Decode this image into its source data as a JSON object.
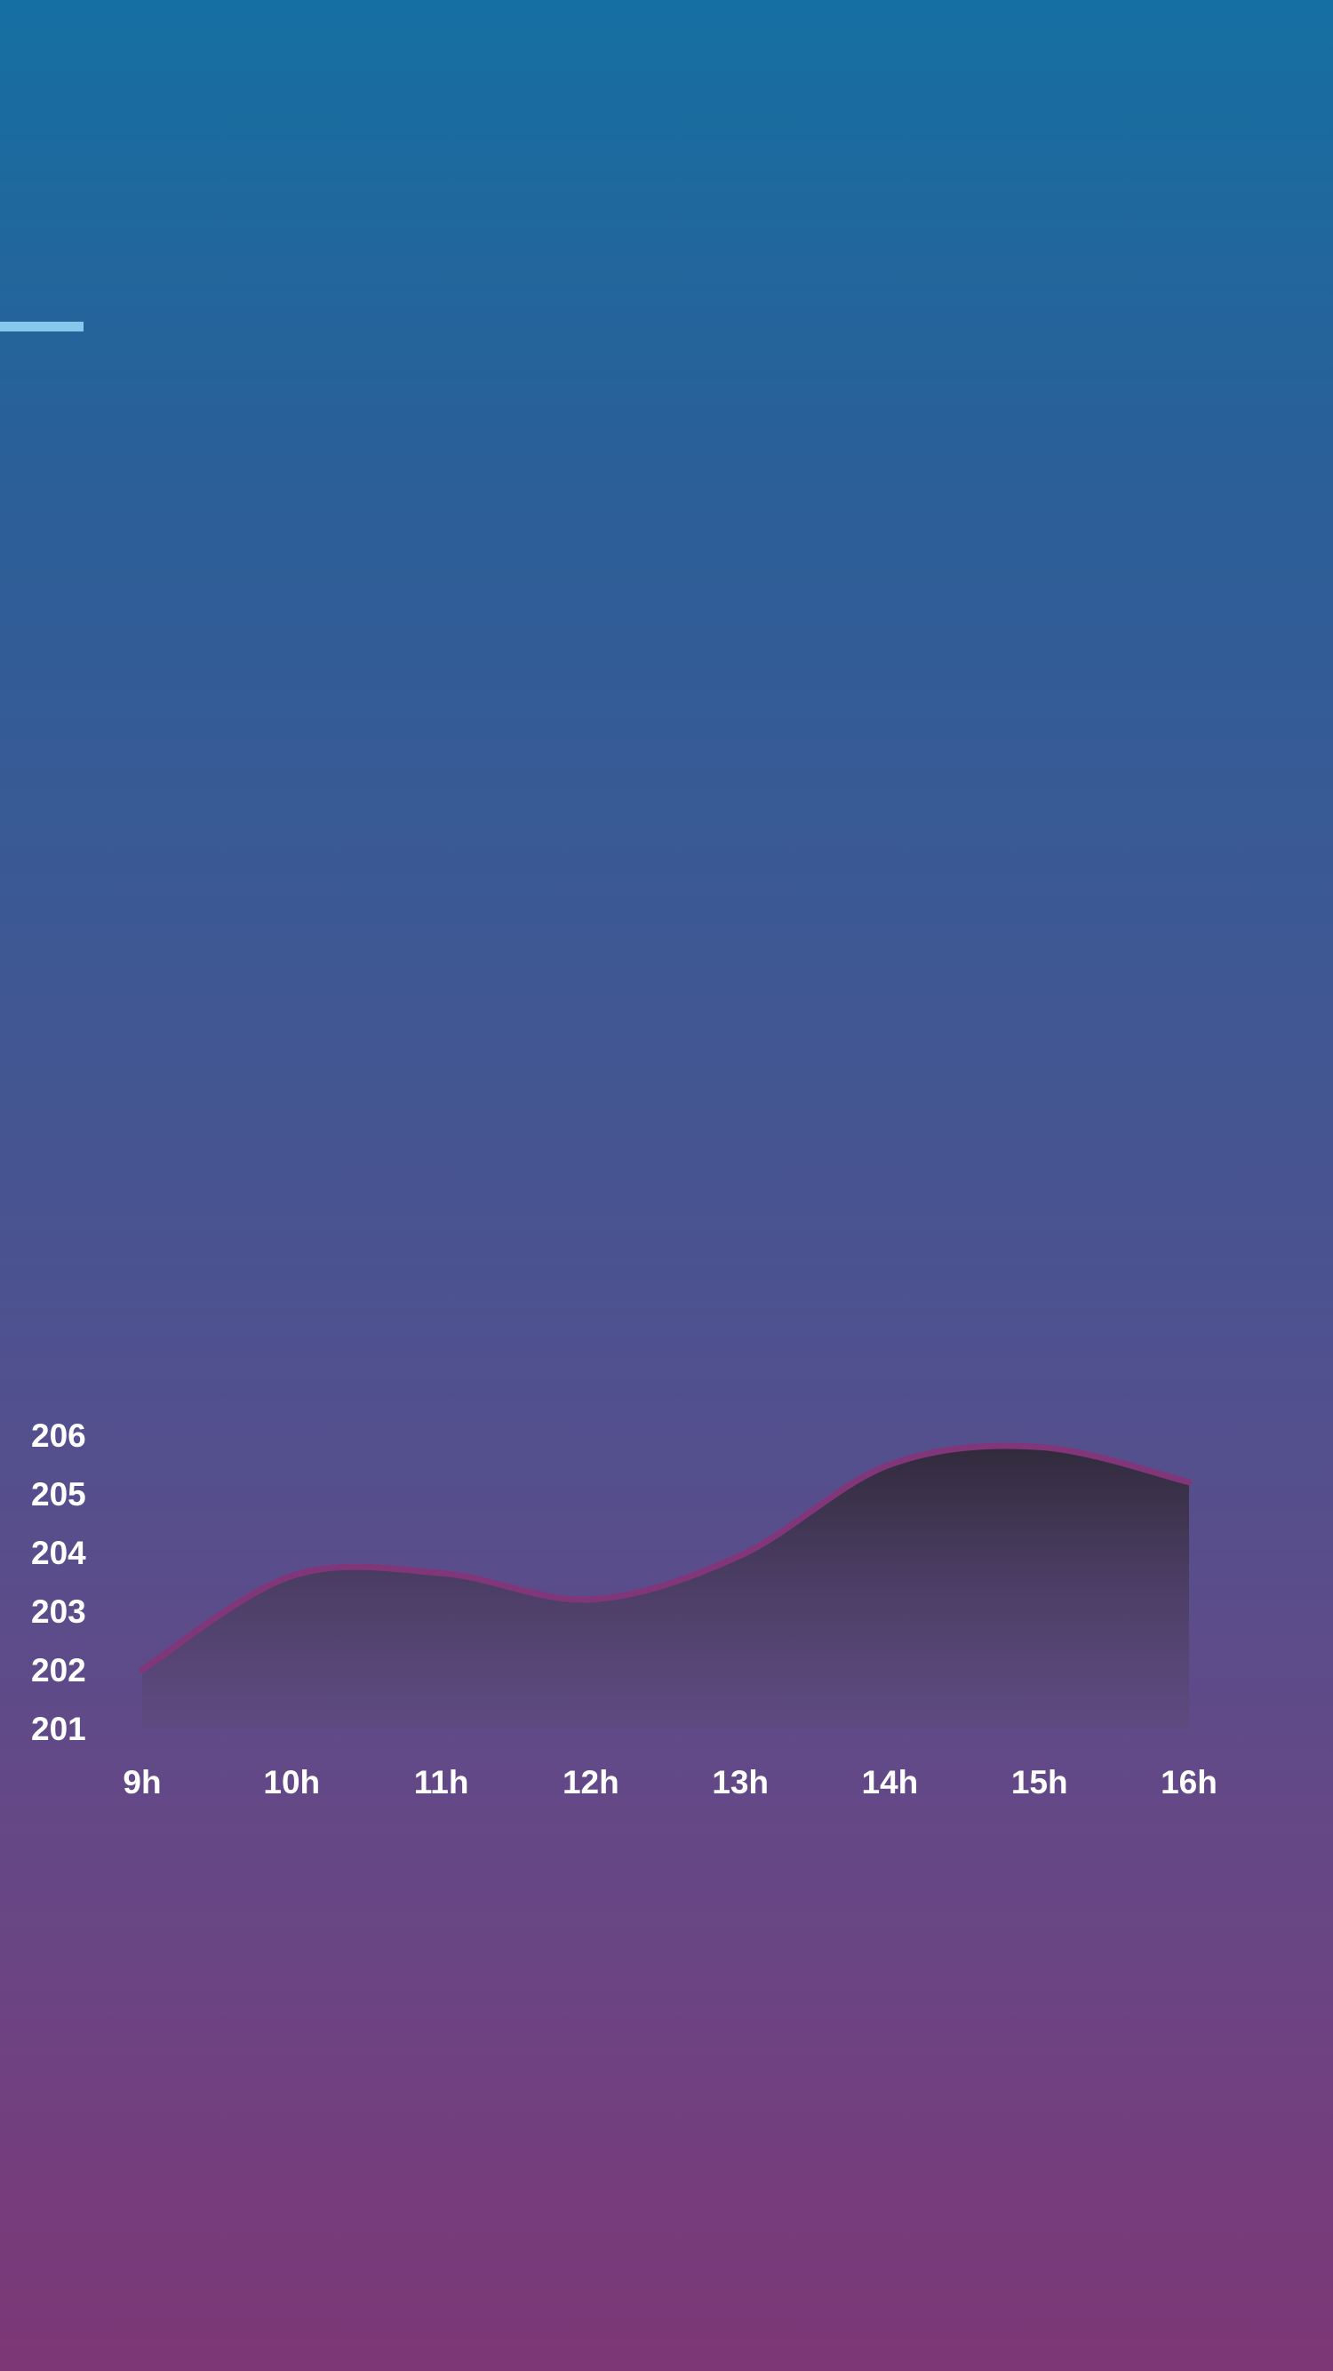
{
  "progress": {
    "fraction": 0.25,
    "color": "#86c8ec"
  },
  "colors": {
    "line": "#82367a",
    "grid_top": "#1f7fb0",
    "grid_bottom": "#8b3a7c",
    "area_top": "#2f2836",
    "area_bottom": "#5e4a7a"
  },
  "chart_data": {
    "type": "area",
    "title": "",
    "xlabel": "",
    "ylabel": "",
    "x": [
      "9h",
      "10h",
      "11h",
      "12h",
      "13h",
      "14h",
      "15h",
      "16h"
    ],
    "yticks": [
      "201",
      "202",
      "203",
      "204",
      "205",
      "206"
    ],
    "ylim": [
      201,
      206
    ],
    "series": [
      {
        "values": [
          202.0,
          203.6,
          203.65,
          203.2,
          203.95,
          205.5,
          205.8,
          205.2
        ]
      }
    ],
    "grid": true,
    "legend": "none"
  }
}
